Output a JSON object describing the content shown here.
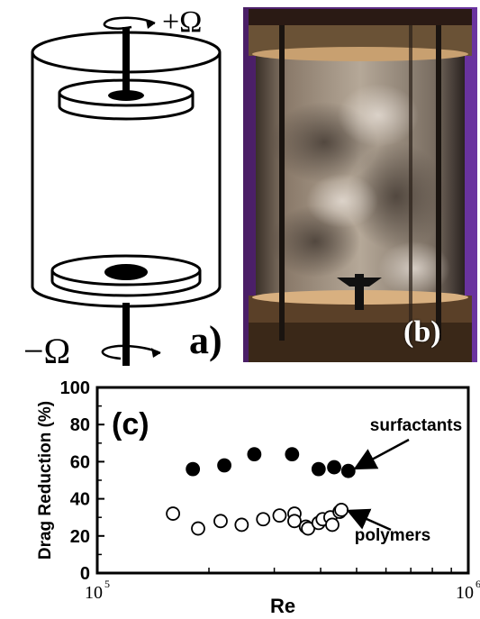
{
  "panel_a": {
    "label": "a)",
    "top_rotation": "+Ω",
    "bottom_rotation": "−Ω"
  },
  "panel_b": {
    "label": "(b)"
  },
  "chart_data": {
    "type": "scatter",
    "panel_label": "(c)",
    "xlabel": "Re",
    "ylabel": "Drag Reduction (%)",
    "xscale": "log",
    "xlim": [
      100000,
      1000000
    ],
    "ylim": [
      0,
      100
    ],
    "x_tick_labels": [
      {
        "value": 100000,
        "base": "10",
        "exp": "5"
      },
      {
        "value": 1000000,
        "base": "10",
        "exp": "6"
      }
    ],
    "y_ticks": [
      0,
      20,
      40,
      60,
      80,
      100
    ],
    "grid": false,
    "series": [
      {
        "name": "surfactants",
        "marker": "filled-circle",
        "points": [
          {
            "x": 181000,
            "y": 56
          },
          {
            "x": 220000,
            "y": 58
          },
          {
            "x": 265000,
            "y": 64
          },
          {
            "x": 335000,
            "y": 64
          },
          {
            "x": 395000,
            "y": 56
          },
          {
            "x": 435000,
            "y": 57
          },
          {
            "x": 475000,
            "y": 55
          }
        ]
      },
      {
        "name": "polymers",
        "marker": "open-circle",
        "points": [
          {
            "x": 160000,
            "y": 32
          },
          {
            "x": 187000,
            "y": 24
          },
          {
            "x": 215000,
            "y": 28
          },
          {
            "x": 245000,
            "y": 26
          },
          {
            "x": 280000,
            "y": 29
          },
          {
            "x": 310000,
            "y": 31
          },
          {
            "x": 340000,
            "y": 32
          },
          {
            "x": 340000,
            "y": 28
          },
          {
            "x": 365000,
            "y": 25
          },
          {
            "x": 370000,
            "y": 24
          },
          {
            "x": 395000,
            "y": 27
          },
          {
            "x": 405000,
            "y": 29
          },
          {
            "x": 425000,
            "y": 30
          },
          {
            "x": 430000,
            "y": 26
          },
          {
            "x": 450000,
            "y": 33
          },
          {
            "x": 455000,
            "y": 34
          }
        ]
      }
    ],
    "annotations": [
      {
        "text": "surfactants",
        "points_to_series": "surfactants"
      },
      {
        "text": "polymers",
        "points_to_series": "polymers"
      }
    ]
  }
}
